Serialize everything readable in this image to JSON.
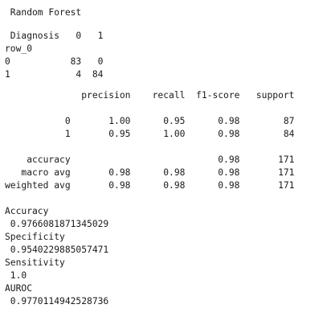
{
  "model_title": "Random Forest",
  "confusion": {
    "header": "Diagnosis",
    "col_labels": [
      "0",
      "1"
    ],
    "index_name": "row_0",
    "rows": [
      {
        "label": "0",
        "values": [
          "83",
          "0"
        ]
      },
      {
        "label": "1",
        "values": [
          "4",
          "84"
        ]
      }
    ]
  },
  "report": {
    "columns": [
      "precision",
      "recall",
      "f1-score",
      "support"
    ],
    "class_rows": [
      {
        "label": "0",
        "precision": "1.00",
        "recall": "0.95",
        "f1": "0.98",
        "support": "87"
      },
      {
        "label": "1",
        "precision": "0.95",
        "recall": "1.00",
        "f1": "0.98",
        "support": "84"
      }
    ],
    "accuracy": {
      "label": "accuracy",
      "f1": "0.98",
      "support": "171"
    },
    "avg_rows": [
      {
        "label": "macro avg",
        "precision": "0.98",
        "recall": "0.98",
        "f1": "0.98",
        "support": "171"
      },
      {
        "label": "weighted avg",
        "precision": "0.98",
        "recall": "0.98",
        "f1": "0.98",
        "support": "171"
      }
    ]
  },
  "metrics": [
    {
      "name": "Accuracy",
      "value": "0.9766081871345029"
    },
    {
      "name": "Specificity",
      "value": "0.9540229885057471"
    },
    {
      "name": "Sensitivity",
      "value": "1.0"
    },
    {
      "name": "AUROC",
      "value": "0.9770114942528736"
    }
  ]
}
